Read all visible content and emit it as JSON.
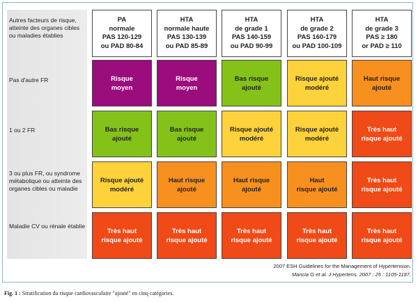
{
  "row_header_title": "Autres facteurs de risque, atteinte des organes cibles ou maladies établies",
  "columns": [
    "PA\nnormale\nPAS 120-129\nou PAD 80-84",
    "HTA\nnormale haute\nPAS 130-139\nou PAD 85-89",
    "HTA\nde grade 1\nPAS 140-159\nou PAD 90-99",
    "HTA\nde grade 2\nPAS 160-179\nou PAD 100-109",
    "HTA\nde grade 3\nPAS ≥ 180\nor PAD ≥ 110"
  ],
  "rows": [
    {
      "label": "Pas d'autre FR",
      "cells": [
        "Risque\nmoyen",
        "Risque\nmoyen",
        "Bas risque\najouté",
        "Risque ajouté\nmodéré",
        "Haut risque\najouté"
      ]
    },
    {
      "label": "1 ou 2 FR",
      "cells": [
        "Bas risque\najouté",
        "Bas risque\najouté",
        "Risque ajouté\nmodéré",
        "Risque ajouté\nmodéré",
        "Très haut\nrisque ajouté"
      ]
    },
    {
      "label": "3 ou plus FR, ou syndrome métabolique ou atteinte des organes cibles ou maladie",
      "cells": [
        "Risque ajouté\nmodéré",
        "Haut risque\najouté",
        "Haut risque\najouté",
        "Haut\nrisque ajouté",
        "Très haut\nrisque ajouté"
      ]
    },
    {
      "label": "Maladie CV ou rénale établie",
      "cells": [
        "Très haut\nrisque ajouté",
        "Très haut\nrisque ajouté",
        "Très haut\nrisque ajouté",
        "Très haut\nrisque ajouté",
        "Très haut\nrisque ajouté"
      ]
    }
  ],
  "cell_colors": [
    [
      "#9b0c7d",
      "#9b0c7d",
      "#84c21a",
      "#fdd23a",
      "#f7901e"
    ],
    [
      "#84c21a",
      "#84c21a",
      "#fdd23a",
      "#fdd23a",
      "#ef4a17"
    ],
    [
      "#fdd23a",
      "#f7901e",
      "#f7901e",
      "#f7901e",
      "#ef4a17"
    ],
    [
      "#ef4a17",
      "#ef4a17",
      "#ef4a17",
      "#ef4a17",
      "#ef4a17"
    ]
  ],
  "source_line1": "2007 ESH Guidelines for the Management of Hypertension.",
  "source_line2": "Mancia G et al. J Hypertens, 2007 ; 25 : 1105-1187.",
  "caption_label": "Fig. 1 :",
  "caption_text": "Stratification du risque cardiovasculaire \"ajouté\" en cinq catégories."
}
